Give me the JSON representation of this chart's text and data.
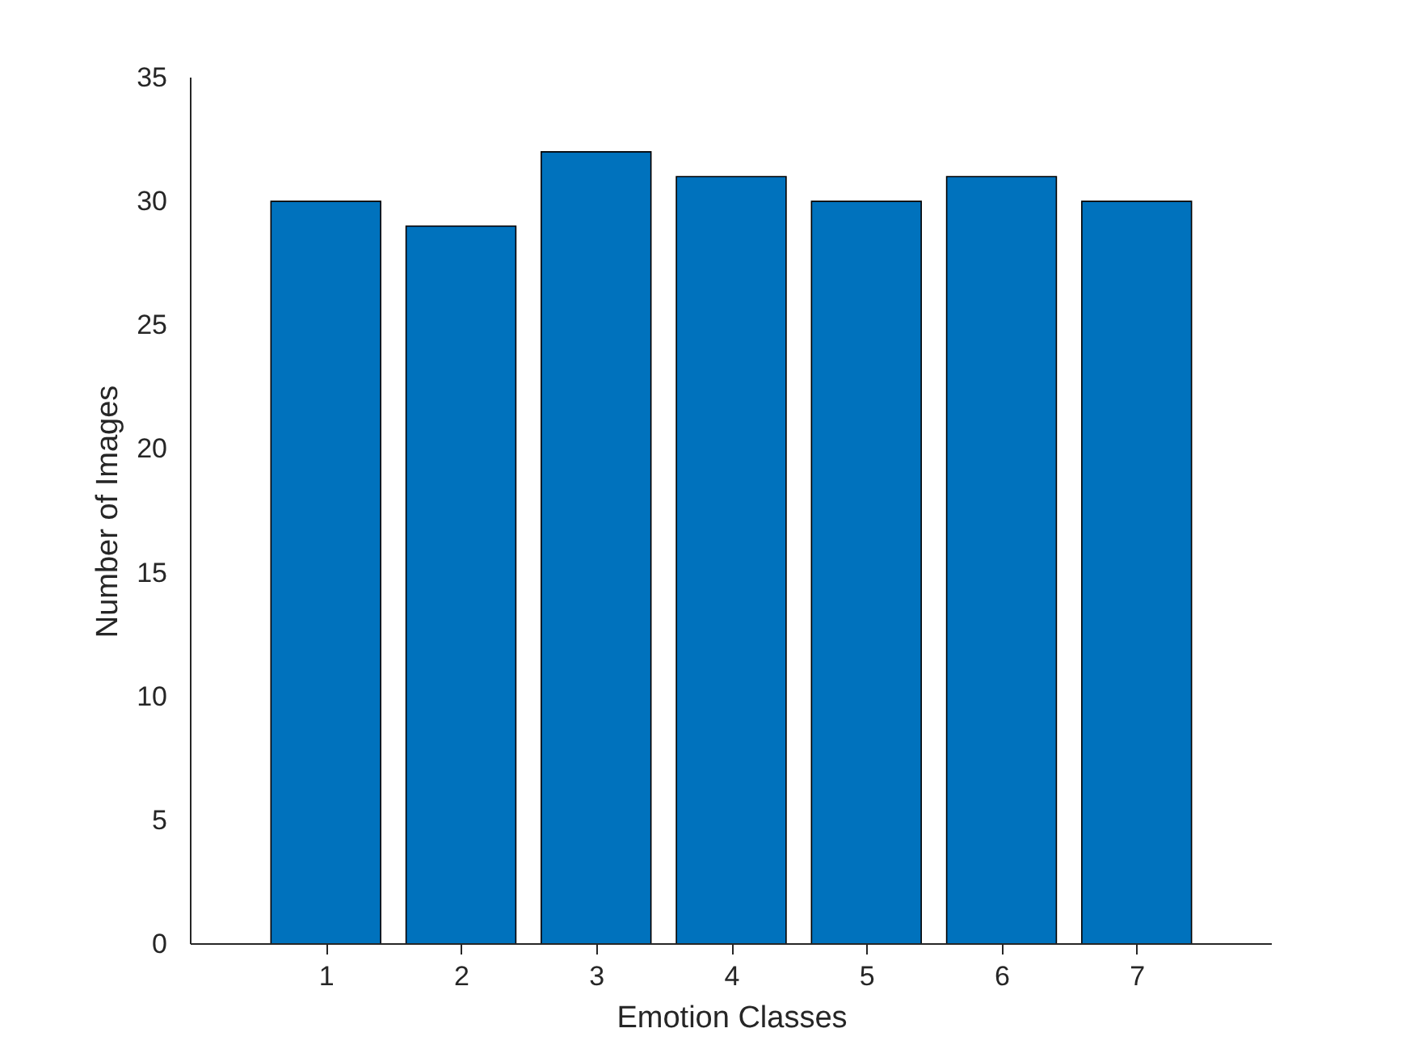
{
  "chart_data": {
    "type": "bar",
    "xlabel": "Emotion Classes",
    "ylabel": "Number of Images",
    "x": [
      1,
      2,
      3,
      4,
      5,
      6,
      7
    ],
    "values": [
      30,
      29,
      32,
      31,
      30,
      31,
      30
    ],
    "color": "#0072bd",
    "xlim": [
      0,
      8
    ],
    "xticks": [
      1,
      2,
      3,
      4,
      5,
      6,
      7
    ],
    "ylim": [
      0,
      35
    ],
    "yticks": [
      0,
      5,
      10,
      15,
      20,
      25,
      30,
      35
    ],
    "grid": false
  }
}
